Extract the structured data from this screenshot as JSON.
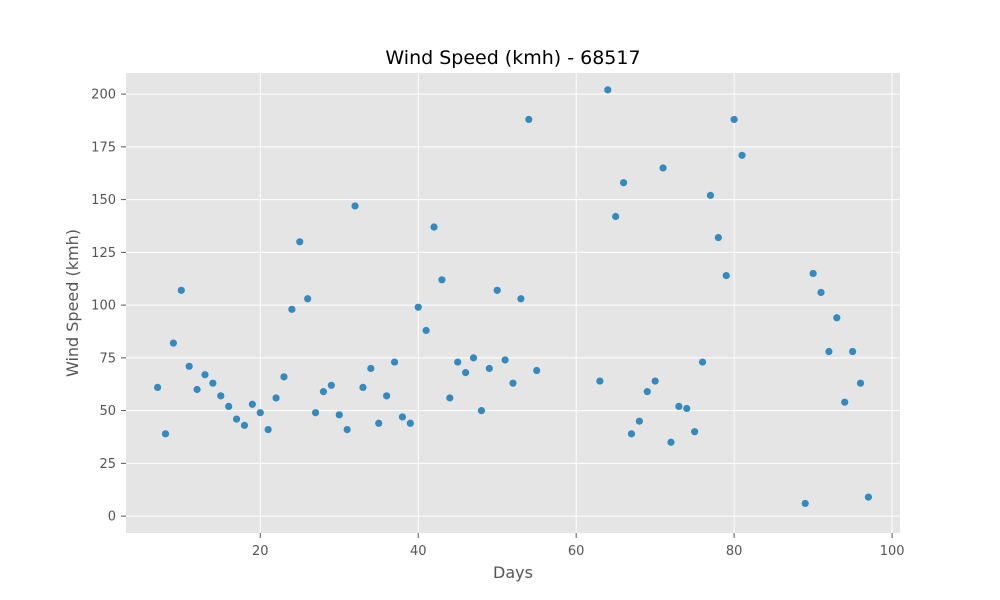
{
  "chart_data": {
    "type": "scatter",
    "title": "Wind Speed (kmh) - 68517",
    "xlabel": "Days",
    "ylabel": "Wind Speed (kmh)",
    "xlim": [
      3,
      101
    ],
    "ylim": [
      -8,
      210
    ],
    "xticks": [
      20,
      40,
      60,
      80,
      100
    ],
    "yticks": [
      0,
      25,
      50,
      75,
      100,
      125,
      150,
      175,
      200
    ],
    "x_tick_labels": [
      "20",
      "40",
      "60",
      "80",
      "100"
    ],
    "y_tick_labels": [
      "0",
      "25",
      "50",
      "75",
      "100",
      "125",
      "150",
      "175",
      "200"
    ],
    "grid": true,
    "background_color": "#e5e5e5",
    "marker_color": "#348abd",
    "series": [
      {
        "points": [
          [
            7,
            61
          ],
          [
            8,
            39
          ],
          [
            9,
            82
          ],
          [
            10,
            107
          ],
          [
            11,
            71
          ],
          [
            12,
            60
          ],
          [
            13,
            67
          ],
          [
            14,
            63
          ],
          [
            15,
            57
          ],
          [
            16,
            52
          ],
          [
            17,
            46
          ],
          [
            18,
            43
          ],
          [
            19,
            53
          ],
          [
            20,
            49
          ],
          [
            21,
            41
          ],
          [
            22,
            56
          ],
          [
            23,
            66
          ],
          [
            24,
            98
          ],
          [
            25,
            130
          ],
          [
            26,
            103
          ],
          [
            27,
            49
          ],
          [
            28,
            59
          ],
          [
            29,
            62
          ],
          [
            30,
            48
          ],
          [
            31,
            41
          ],
          [
            32,
            147
          ],
          [
            33,
            61
          ],
          [
            34,
            70
          ],
          [
            35,
            44
          ],
          [
            36,
            57
          ],
          [
            37,
            73
          ],
          [
            38,
            47
          ],
          [
            39,
            44
          ],
          [
            40,
            99
          ],
          [
            41,
            88
          ],
          [
            42,
            137
          ],
          [
            43,
            112
          ],
          [
            44,
            56
          ],
          [
            45,
            73
          ],
          [
            46,
            68
          ],
          [
            47,
            75
          ],
          [
            48,
            50
          ],
          [
            49,
            70
          ],
          [
            50,
            107
          ],
          [
            51,
            74
          ],
          [
            52,
            63
          ],
          [
            53,
            103
          ],
          [
            54,
            188
          ],
          [
            55,
            69
          ],
          [
            63,
            64
          ],
          [
            64,
            202
          ],
          [
            65,
            142
          ],
          [
            66,
            158
          ],
          [
            67,
            39
          ],
          [
            68,
            45
          ],
          [
            69,
            59
          ],
          [
            70,
            64
          ],
          [
            71,
            165
          ],
          [
            72,
            35
          ],
          [
            73,
            52
          ],
          [
            74,
            51
          ],
          [
            75,
            40
          ],
          [
            76,
            73
          ],
          [
            77,
            152
          ],
          [
            78,
            132
          ],
          [
            79,
            114
          ],
          [
            80,
            188
          ],
          [
            81,
            171
          ],
          [
            89,
            6
          ],
          [
            90,
            115
          ],
          [
            91,
            106
          ],
          [
            92,
            78
          ],
          [
            93,
            94
          ],
          [
            94,
            54
          ],
          [
            95,
            78
          ],
          [
            96,
            63
          ],
          [
            97,
            9
          ]
        ]
      }
    ]
  }
}
